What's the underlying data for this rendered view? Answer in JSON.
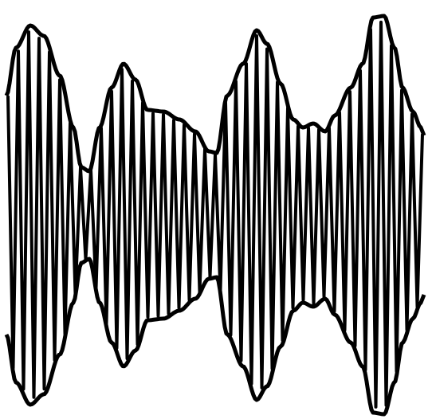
{
  "figure": {
    "stroke_color": "#000000",
    "background_color": "#ffffff"
  }
}
